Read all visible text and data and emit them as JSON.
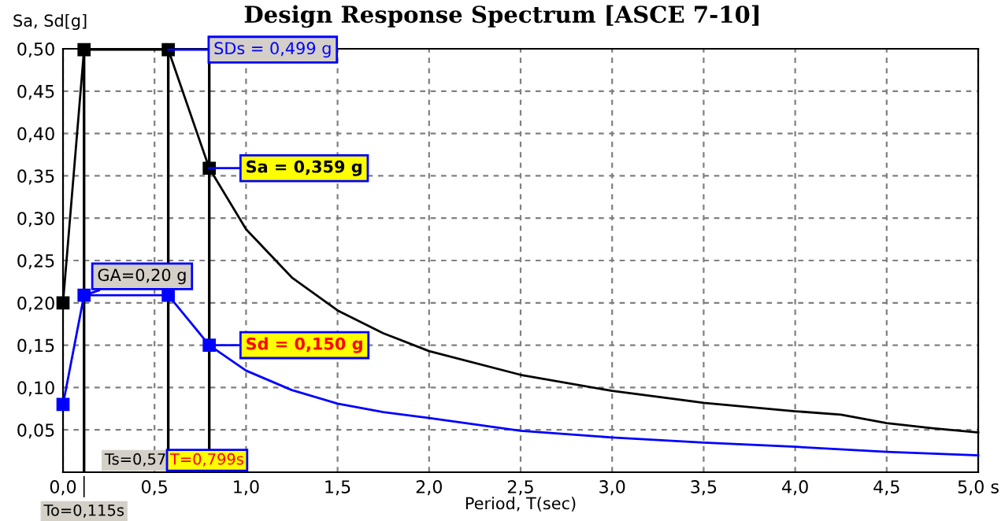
{
  "chart_data": {
    "type": "line",
    "title": "Design Response Spectrum [ASCE 7-10]",
    "xlabel": "Period, T(sec)",
    "ylabel": "Sa, Sd[g]",
    "series": [
      {
        "color": "#000000",
        "marker": "square",
        "x": [
          0,
          0.115,
          0.575,
          0.799
        ],
        "values": [
          0.2,
          0.499,
          0.499,
          0.359
        ]
      },
      {
        "color": "#000000",
        "marker": "none",
        "x": [
          0.799,
          1.0,
          1.25,
          1.5,
          1.75,
          2.0,
          2.5,
          3.0,
          3.5,
          4.0,
          4.25,
          4.5,
          4.75,
          5.0
        ],
        "values": [
          0.359,
          0.287,
          0.23,
          0.191,
          0.164,
          0.143,
          0.115,
          0.096,
          0.082,
          0.072,
          0.068,
          0.058,
          0.052,
          0.047
        ]
      },
      {
        "color": "#0000ff",
        "marker": "square",
        "x": [
          0,
          0.115,
          0.575,
          0.799
        ],
        "values": [
          0.08,
          0.209,
          0.209,
          0.15
        ]
      },
      {
        "color": "#0000ff",
        "marker": "none",
        "x": [
          0.799,
          1.0,
          1.25,
          1.5,
          1.75,
          2.0,
          2.5,
          3.0,
          3.5,
          4.0,
          4.5,
          5.0
        ],
        "values": [
          0.15,
          0.12,
          0.097,
          0.081,
          0.071,
          0.064,
          0.049,
          0.041,
          0.035,
          0.03,
          0.024,
          0.02
        ]
      }
    ],
    "xlim": [
      0,
      5.0
    ],
    "ylim": [
      0,
      0.5
    ],
    "xticks": [
      {
        "value": 0,
        "label": "0,0"
      },
      {
        "value": 0.5,
        "label": "0,5"
      },
      {
        "value": 1.0,
        "label": "1,0"
      },
      {
        "value": 1.5,
        "label": "1,5"
      },
      {
        "value": 2.0,
        "label": "2,0"
      },
      {
        "value": 2.5,
        "label": "2,5"
      },
      {
        "value": 3.0,
        "label": "3,0"
      },
      {
        "value": 3.5,
        "label": "3,5"
      },
      {
        "value": 4.0,
        "label": "4,0"
      },
      {
        "value": 4.5,
        "label": "4,5"
      },
      {
        "value": 5.0,
        "label": "5,0 s"
      }
    ],
    "yticks": [
      {
        "value": 0.05,
        "label": "0,05"
      },
      {
        "value": 0.1,
        "label": "0,10"
      },
      {
        "value": 0.15,
        "label": "0,15"
      },
      {
        "value": 0.2,
        "label": "0,20"
      },
      {
        "value": 0.25,
        "label": "0,25"
      },
      {
        "value": 0.3,
        "label": "0,30"
      },
      {
        "value": 0.35,
        "label": "0,35"
      },
      {
        "value": 0.4,
        "label": "0,40"
      },
      {
        "value": 0.45,
        "label": "0,45"
      },
      {
        "value": 0.5,
        "label": "0,50"
      }
    ],
    "grid": true,
    "ref_lines": [
      {
        "axis": "x",
        "value": 0.115,
        "label": "To=0,115s",
        "color": "#000000"
      },
      {
        "axis": "x",
        "value": 0.575,
        "label": "Ts=0,57",
        "color": "#000000"
      },
      {
        "axis": "x",
        "value": 0.799,
        "label": "T=0,799s",
        "color": "#000000"
      }
    ],
    "annotations": [
      {
        "text": "SDs = 0,499 g",
        "x": 0.575,
        "y": 0.499
      },
      {
        "text": "Sa = 0,359 g",
        "x": 0.799,
        "y": 0.359
      },
      {
        "text": "Sd = 0,150 g",
        "x": 0.799,
        "y": 0.15
      },
      {
        "text": "GA=0,20 g",
        "x": 0.115,
        "y": 0.209
      }
    ]
  }
}
